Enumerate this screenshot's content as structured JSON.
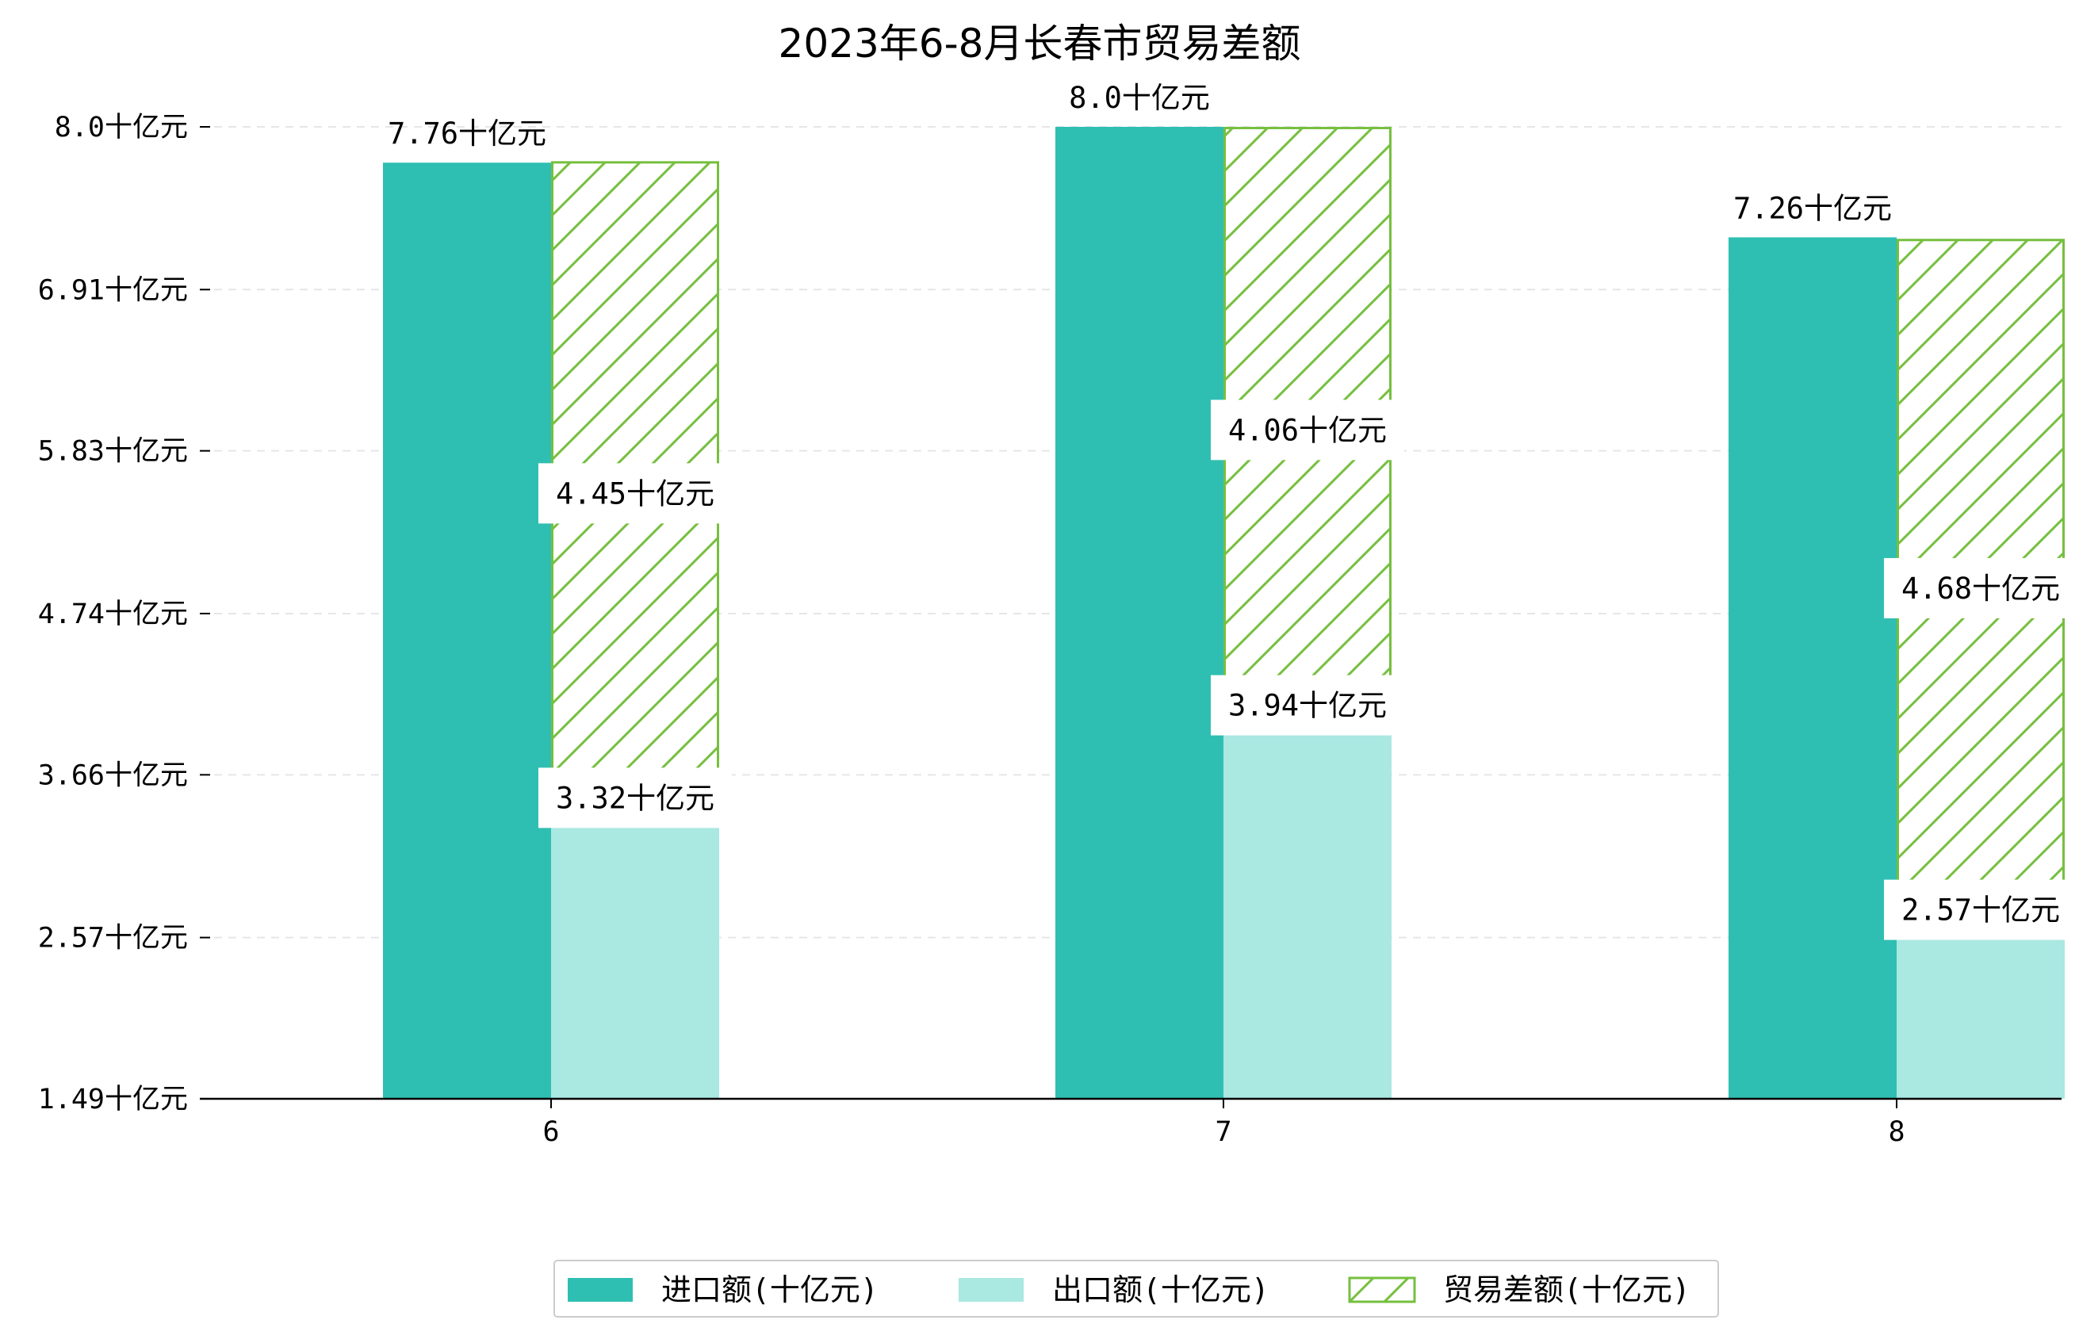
{
  "chart_data": {
    "type": "bar",
    "title": "2023年6-8月长春市贸易差额",
    "categories": [
      "6",
      "7",
      "8"
    ],
    "series": [
      {
        "name": "进口额(十亿元)",
        "values": [
          7.76,
          8.0,
          7.26
        ],
        "color": "#2fbfb2",
        "labels": [
          "7.76十亿元",
          "8.0十亿元",
          "7.26十亿元"
        ]
      },
      {
        "name": "出口额(十亿元)",
        "values": [
          3.32,
          3.94,
          2.57
        ],
        "color": "#aae8e2",
        "labels": [
          "3.32十亿元",
          "3.94十亿元",
          "2.57十亿元"
        ]
      },
      {
        "name": "贸易差额(十亿元)",
        "values": [
          4.45,
          4.06,
          4.68
        ],
        "color": "#76bf3f",
        "hatch": true,
        "stacked_on": "出口额(十亿元)",
        "labels": [
          "4.45十亿元",
          "4.06十亿元",
          "4.68十亿元"
        ]
      }
    ],
    "yticks": [
      "1.49十亿元",
      "2.57十亿元",
      "3.66十亿元",
      "4.74十亿元",
      "5.83十亿元",
      "6.91十亿元",
      "8.0十亿元"
    ],
    "ytick_values": [
      1.49,
      2.57,
      3.66,
      4.74,
      5.83,
      6.91,
      8.0
    ],
    "ylim": [
      1.49,
      8.0
    ],
    "xlabel": "",
    "ylabel": "",
    "grid": "horizontal dashed",
    "legend_position": "bottom-center"
  }
}
